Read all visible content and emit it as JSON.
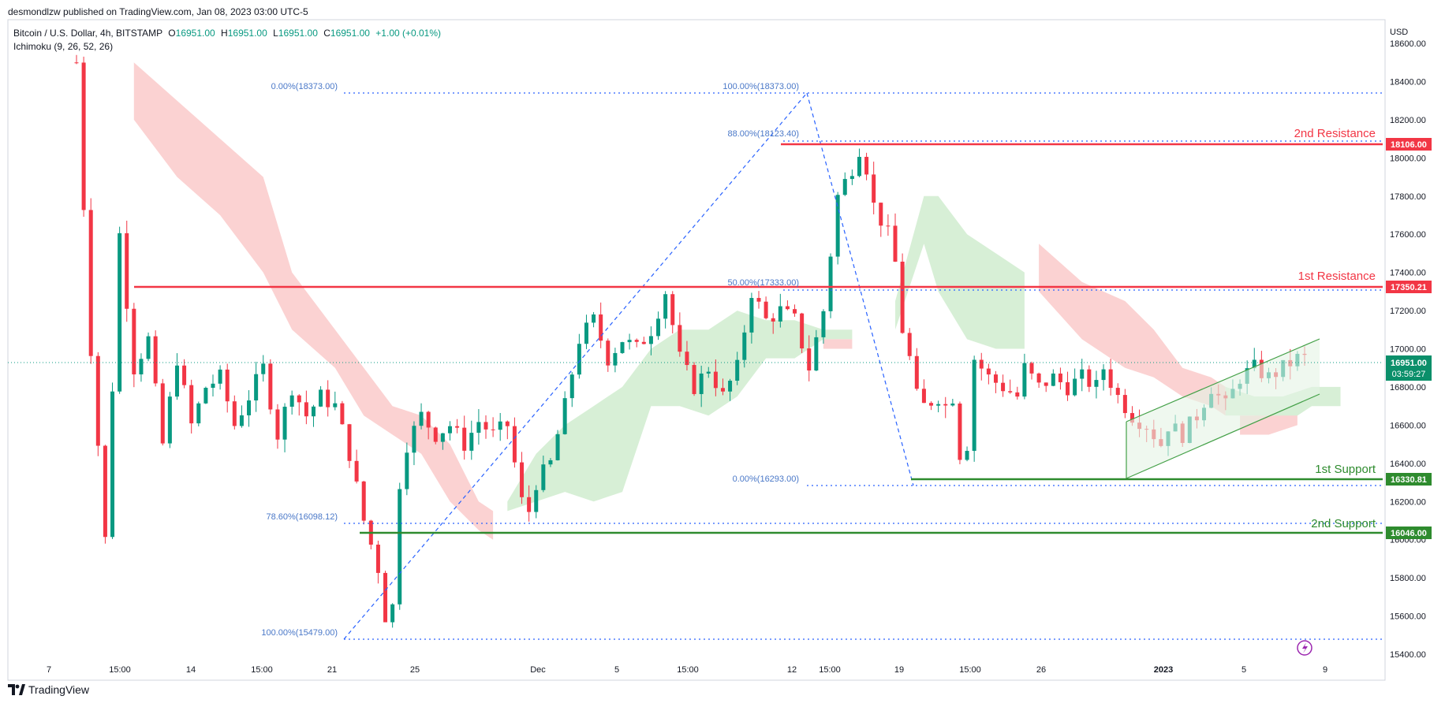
{
  "header": {
    "publisher_line": "desmondlzw published on TradingView.com, Jan 08, 2023 03:00 UTC-5",
    "symbol": "Bitcoin / U.S. Dollar, 4h, BITSTAMP",
    "ohlc_labels": [
      "O",
      "H",
      "L",
      "C"
    ],
    "ohlc_values": [
      "16951.00",
      "16951.00",
      "16951.00",
      "16951.00"
    ],
    "change": "+1.00 (+0.01%)",
    "indicator": "Ichimoku (9, 26, 52, 26)"
  },
  "brand": "TradingView",
  "axis": {
    "currency": "USD",
    "price_ticks": [
      "18600.00",
      "18400.00",
      "18200.00",
      "18000.00",
      "17800.00",
      "17600.00",
      "17400.00",
      "17200.00",
      "17000.00",
      "16800.00",
      "16600.00",
      "16400.00",
      "16200.00",
      "16000.00",
      "15800.00",
      "15600.00",
      "15400.00"
    ],
    "time_ticks": [
      "7",
      "15:00",
      "14",
      "15:00",
      "21",
      "25",
      "Dec",
      "5",
      "15:00",
      "12",
      "15:00",
      "19",
      "15:00",
      "26",
      "2023",
      "5",
      "9"
    ]
  },
  "price_tags": {
    "resistance2": "18106.00",
    "resistance1": "17350.21",
    "last": "16951.00",
    "countdown": "03:59:27",
    "support1": "16330.81",
    "support2": "16046.00"
  },
  "levels": {
    "resistance2_label": "2nd Resistance",
    "resistance1_label": "1st Resistance",
    "support1_label": "1st Support",
    "support2_label": "2nd Support"
  },
  "fib_labels": {
    "a": "0.00%(18373.00)",
    "b": "100.00%(18373.00)",
    "c": "88.00%(18123.40)",
    "d": "50.00%(17333.00)",
    "e": "0.00%(16293.00)",
    "f": "78.60%(16098.12)",
    "g": "100.00%(15479.00)"
  },
  "colors": {
    "up": "#089981",
    "down": "#f23645",
    "resistance": "#f23645",
    "support": "#2e8b2e",
    "fib": "#2962ff",
    "kumo_bear": "#fbd2d2",
    "kumo_bull": "#d7efd6",
    "last_tag": "#0b8f6a",
    "channel": "#43a047",
    "fib_text": "#4a78c8"
  },
  "chart_data": {
    "type": "candlestick",
    "symbol": "Bitcoin / U.S. Dollar",
    "interval": "4h",
    "ylim": [
      15400,
      18600
    ],
    "horizontal_levels": [
      {
        "name": "2nd Resistance",
        "value": 18106.0
      },
      {
        "name": "1st Resistance",
        "value": 17350.21
      },
      {
        "name": "1st Support",
        "value": 16330.81
      },
      {
        "name": "2nd Support",
        "value": 16046.0
      }
    ],
    "fibonacci": [
      {
        "label": "0.00%",
        "value": 18373.0
      },
      {
        "label": "100.00%",
        "value": 18373.0
      },
      {
        "label": "88.00%",
        "value": 18123.4
      },
      {
        "label": "50.00%",
        "value": 17333.0
      },
      {
        "label": "0.00%",
        "value": 16293.0
      },
      {
        "label": "78.60%",
        "value": 16098.12
      },
      {
        "label": "100.00%",
        "value": 15479.0
      }
    ],
    "last_price": 16951.0,
    "path_points": [
      [
        0,
        18500
      ],
      [
        2,
        17000
      ],
      [
        4,
        16000
      ],
      [
        6,
        17600
      ],
      [
        8,
        16900
      ],
      [
        10,
        17050
      ],
      [
        12,
        16500
      ],
      [
        14,
        16950
      ],
      [
        16,
        16600
      ],
      [
        18,
        16800
      ],
      [
        20,
        16850
      ],
      [
        22,
        16600
      ],
      [
        24,
        16750
      ],
      [
        26,
        16900
      ],
      [
        28,
        16550
      ],
      [
        30,
        16800
      ],
      [
        32,
        16650
      ],
      [
        34,
        16750
      ],
      [
        36,
        16700
      ],
      [
        38,
        16450
      ],
      [
        40,
        16100
      ],
      [
        42,
        15850
      ],
      [
        43,
        15600
      ],
      [
        44,
        15650
      ],
      [
        45,
        16300
      ],
      [
        46,
        16500
      ],
      [
        48,
        16650
      ],
      [
        50,
        16550
      ],
      [
        52,
        16600
      ],
      [
        54,
        16500
      ],
      [
        56,
        16620
      ],
      [
        58,
        16550
      ],
      [
        60,
        16600
      ],
      [
        62,
        16200
      ],
      [
        63,
        16150
      ],
      [
        64,
        16300
      ],
      [
        66,
        16400
      ],
      [
        68,
        16700
      ],
      [
        70,
        17050
      ],
      [
        72,
        17150
      ],
      [
        74,
        16950
      ],
      [
        76,
        17050
      ],
      [
        78,
        17000
      ],
      [
        80,
        17100
      ],
      [
        82,
        17300
      ],
      [
        84,
        16950
      ],
      [
        86,
        16800
      ],
      [
        88,
        16900
      ],
      [
        90,
        16750
      ],
      [
        92,
        16900
      ],
      [
        94,
        17300
      ],
      [
        96,
        17150
      ],
      [
        98,
        17200
      ],
      [
        100,
        17150
      ],
      [
        102,
        16900
      ],
      [
        104,
        17200
      ],
      [
        106,
        17800
      ],
      [
        108,
        17950
      ],
      [
        109,
        18050
      ],
      [
        110,
        17950
      ],
      [
        111,
        17750
      ],
      [
        113,
        17600
      ],
      [
        114,
        17450
      ],
      [
        115,
        17100
      ],
      [
        116,
        16950
      ],
      [
        117,
        16750
      ],
      [
        118,
        16700
      ],
      [
        120,
        16750
      ],
      [
        121,
        16700
      ],
      [
        122,
        16750
      ],
      [
        123,
        16450
      ],
      [
        124,
        16500
      ],
      [
        125,
        16950
      ],
      [
        127,
        16850
      ],
      [
        129,
        16800
      ],
      [
        131,
        16750
      ],
      [
        132,
        16900
      ],
      [
        134,
        16800
      ],
      [
        136,
        16850
      ],
      [
        138,
        16800
      ],
      [
        140,
        16850
      ],
      [
        142,
        16800
      ],
      [
        143,
        16900
      ],
      [
        145,
        16750
      ],
      [
        147,
        16650
      ],
      [
        149,
        16600
      ],
      [
        151,
        16500
      ],
      [
        152,
        16600
      ],
      [
        154,
        16550
      ],
      [
        156,
        16650
      ],
      [
        158,
        16800
      ],
      [
        160,
        16700
      ],
      [
        162,
        16850
      ],
      [
        164,
        16900
      ],
      [
        166,
        16850
      ],
      [
        168,
        16900
      ],
      [
        170,
        16950
      ],
      [
        171,
        16950
      ]
    ],
    "note_x": "x = 4h bar index from chart start"
  }
}
